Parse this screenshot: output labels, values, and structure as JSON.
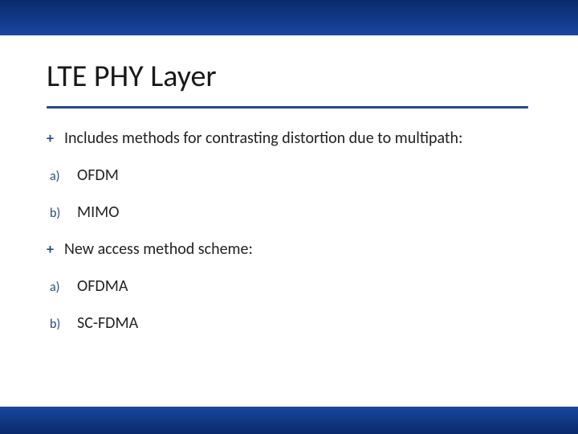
{
  "colors": {
    "accent": "#1e4aa1",
    "bar_gradient_top": "#0a2a6a",
    "bar_gradient_bottom": "#1846a0",
    "text": "#222222",
    "background": "#ffffff"
  },
  "title": "LTE PHY Layer",
  "bullets": [
    {
      "marker": "+",
      "text": "Includes methods for contrasting distortion due to multipath:",
      "sub": [
        {
          "marker": "a)",
          "text": "OFDM"
        },
        {
          "marker": "b)",
          "text": "MIMO"
        }
      ]
    },
    {
      "marker": "+",
      "text": "New access method scheme:",
      "sub": [
        {
          "marker": "a)",
          "text": "OFDMA"
        },
        {
          "marker": "b)",
          "text": "SC-FDMA"
        }
      ]
    }
  ]
}
